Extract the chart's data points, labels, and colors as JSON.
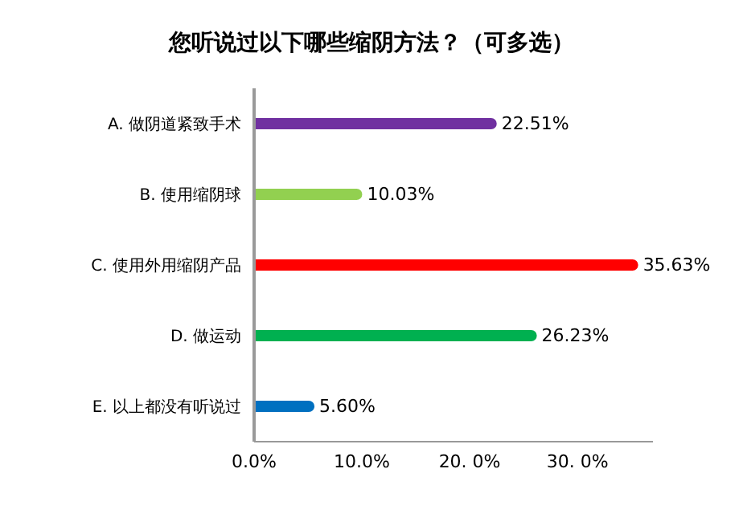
{
  "chart_data": {
    "type": "bar",
    "orientation": "horizontal",
    "title": "您听说过以下哪些缩阴方法？（可多选）",
    "categories": [
      "A. 做阴道紧致手术",
      "B. 使用缩阴球",
      "C. 使用外用缩阴产品",
      "D. 做运动",
      "E. 以上都没有听说过"
    ],
    "values": [
      22.51,
      10.03,
      35.63,
      26.23,
      5.6
    ],
    "colors": [
      "#7030a0",
      "#92d050",
      "#ff0000",
      "#00b050",
      "#0070c0"
    ],
    "value_labels": [
      "22.51%",
      "10.03%",
      "35.63%",
      "26.23%",
      "5.60%"
    ],
    "xlim": [
      0,
      37
    ],
    "xticks": [
      {
        "value": 0,
        "label": "0.0%"
      },
      {
        "value": 10,
        "label": "10.0%"
      },
      {
        "value": 20,
        "label": "20. 0%"
      },
      {
        "value": 30,
        "label": "30. 0%"
      }
    ],
    "grid": false
  }
}
